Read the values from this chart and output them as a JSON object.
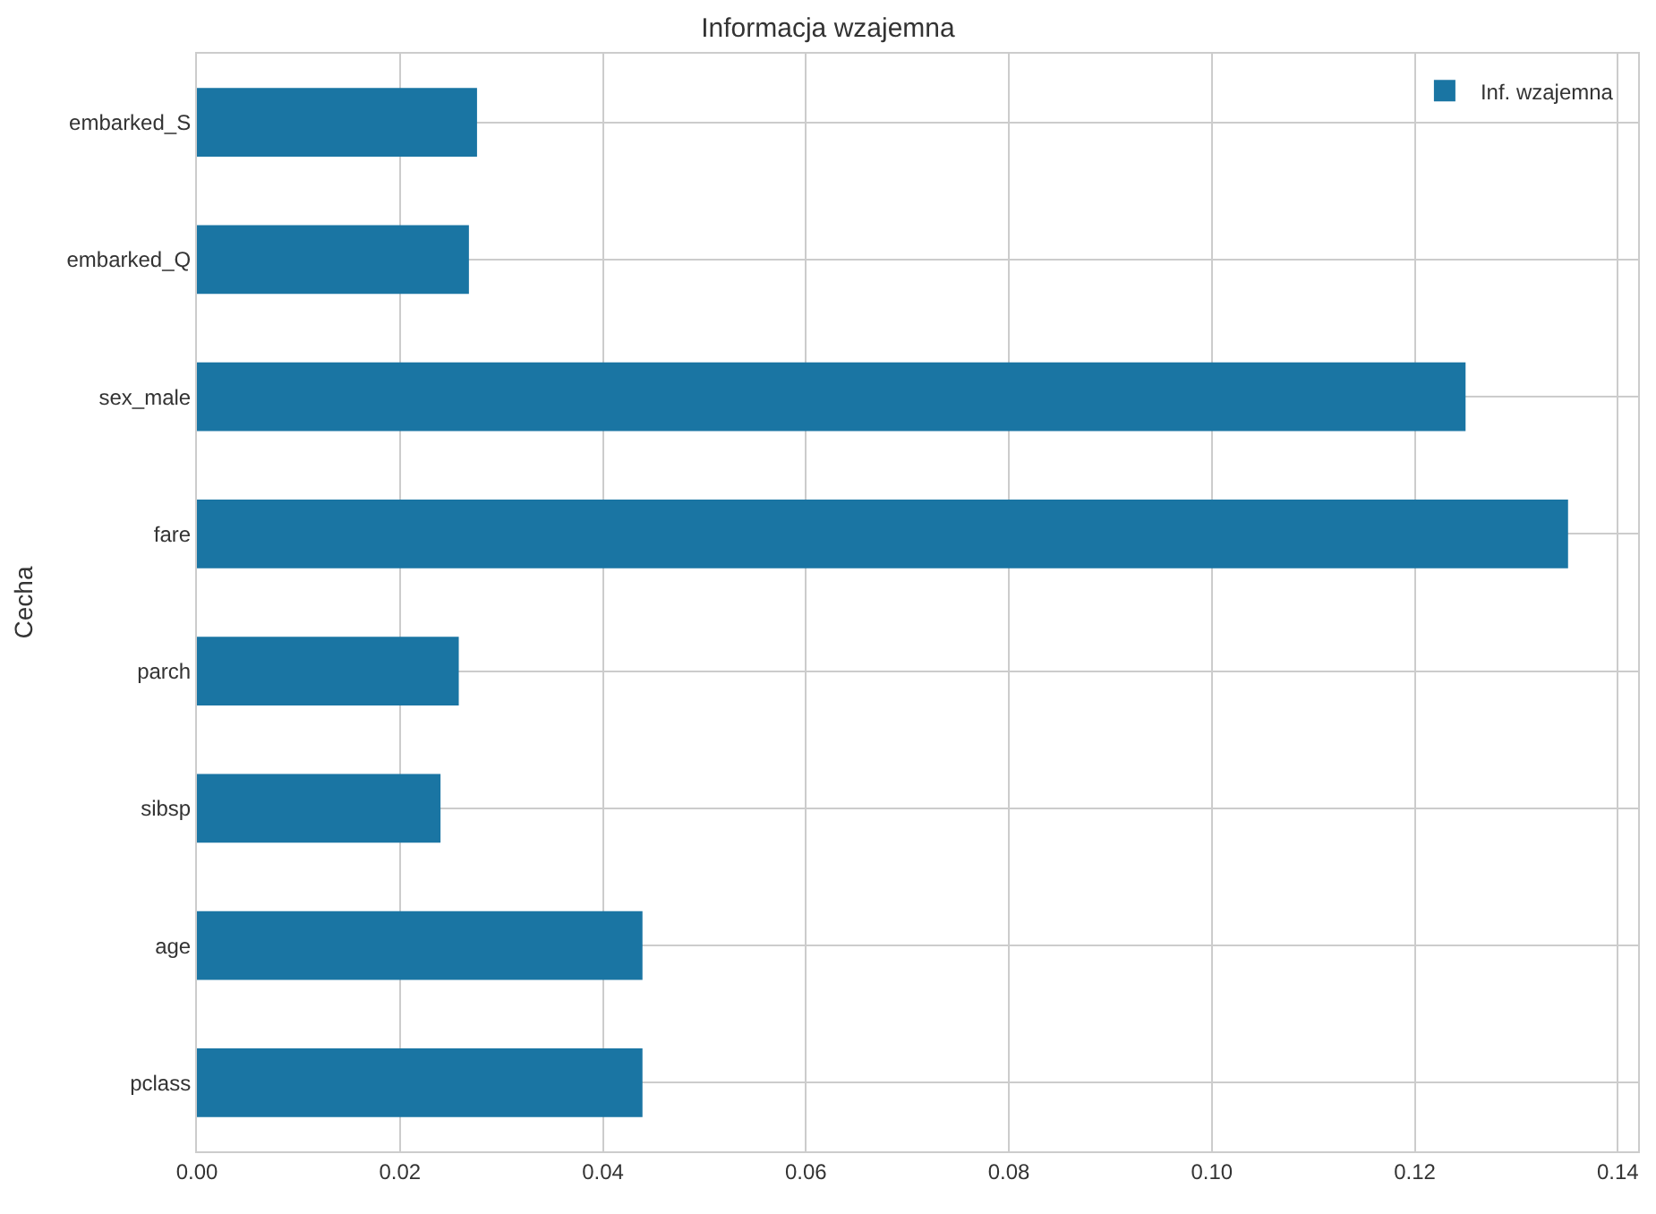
{
  "chart_data": {
    "type": "bar",
    "orientation": "horizontal",
    "title": "Informacja wzajemna",
    "ylabel": "Cecha",
    "categories": [
      "embarked_S",
      "embarked_Q",
      "sex_male",
      "fare",
      "parch",
      "sibsp",
      "age",
      "pclass"
    ],
    "series": [
      {
        "name": "Inf. wzajemna",
        "color": "#1a75a3",
        "values": [
          0.0276,
          0.0268,
          0.125,
          0.1351,
          0.0258,
          0.024,
          0.0439,
          0.0439
        ]
      }
    ],
    "xlim": [
      0,
      0.142
    ],
    "xticks": [
      {
        "value": 0,
        "label": "0.00"
      },
      {
        "value": 0.02,
        "label": "0.02"
      },
      {
        "value": 0.04,
        "label": "0.04"
      },
      {
        "value": 0.06,
        "label": "0.06"
      },
      {
        "value": 0.08,
        "label": "0.08"
      },
      {
        "value": 0.1,
        "label": "0.10"
      },
      {
        "value": 0.12,
        "label": "0.12"
      },
      {
        "value": 0.14,
        "label": "0.14"
      }
    ],
    "grid": true,
    "legend": "top right"
  }
}
